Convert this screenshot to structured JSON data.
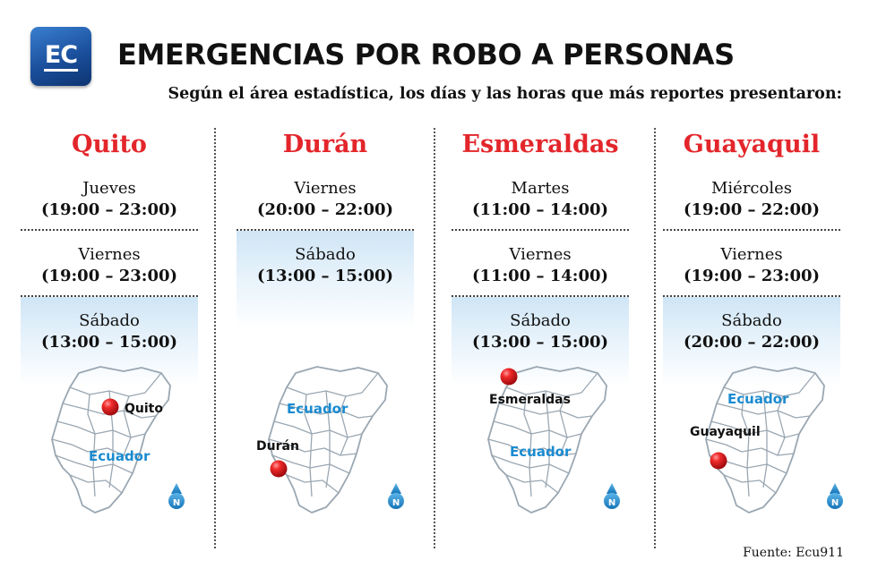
{
  "logo": {
    "text": "EC"
  },
  "header": {
    "title": "EMERGENCIAS POR ROBO A PERSONAS",
    "subtitle": "Según el área estadística, los días y las horas que más reportes presentaron:"
  },
  "columns": [
    {
      "city": "Quito",
      "map_city_label": "Quito",
      "map_country_label": "Ecuador",
      "slots": [
        {
          "day": "Jueves",
          "hours": "(19:00 – 23:00)"
        },
        {
          "day": "Viernes",
          "hours": "(19:00 – 23:00)"
        },
        {
          "day": "Sábado",
          "hours": "(13:00 – 15:00)"
        }
      ]
    },
    {
      "city": "Durán",
      "map_city_label": "Durán",
      "map_country_label": "Ecuador",
      "slots": [
        {
          "day": "Viernes",
          "hours": "(20:00 – 22:00)"
        },
        {
          "day": "Sábado",
          "hours": "(13:00 – 15:00)"
        }
      ]
    },
    {
      "city": "Esmeraldas",
      "map_city_label": "Esmeraldas",
      "map_country_label": "Ecuador",
      "slots": [
        {
          "day": "Martes",
          "hours": "(11:00 – 14:00)"
        },
        {
          "day": "Viernes",
          "hours": "(11:00 – 14:00)"
        },
        {
          "day": "Sábado",
          "hours": "(13:00 – 15:00)"
        }
      ]
    },
    {
      "city": "Guayaquil",
      "map_city_label": "Guayaquil",
      "map_country_label": "Ecuador",
      "slots": [
        {
          "day": "Miércoles",
          "hours": "(19:00 – 22:00)"
        },
        {
          "day": "Viernes",
          "hours": "(19:00 – 23:00)"
        },
        {
          "day": "Sábado",
          "hours": "(20:00 – 22:00)"
        }
      ]
    }
  ],
  "compass": {
    "label": "N"
  },
  "source": "Fuente: Ecu911",
  "colors": {
    "city": "#e3262b",
    "country_label": "#1a8bd0",
    "marker": "#e0141c",
    "logo": "#1a4f9c"
  }
}
